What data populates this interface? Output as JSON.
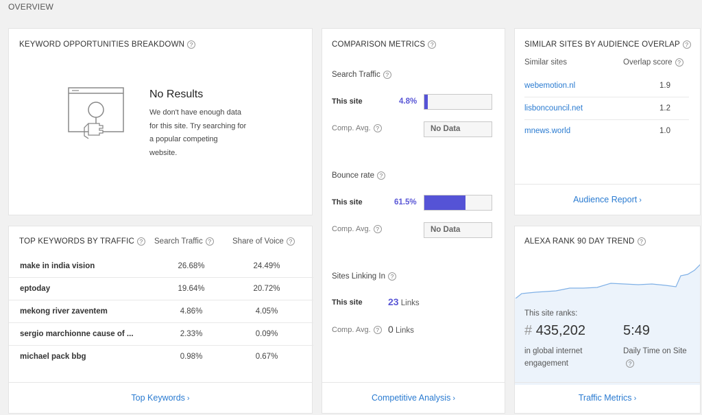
{
  "page": {
    "section_title": "OVERVIEW"
  },
  "keyword_opportunities": {
    "title": "KEYWORD OPPORTUNITIES BREAKDOWN",
    "no_results_title": "No Results",
    "no_results_lines": [
      "We don't have enough data",
      "for this site. Try searching for",
      "a popular competing",
      "website."
    ]
  },
  "top_keywords": {
    "title": "TOP KEYWORDS BY TRAFFIC",
    "col_search_traffic": "Search Traffic",
    "col_share_of_voice": "Share of Voice",
    "rows": [
      {
        "keyword": "make in india vision",
        "search_traffic": "26.68%",
        "share_of_voice": "24.49%"
      },
      {
        "keyword": "eptoday",
        "search_traffic": "19.64%",
        "share_of_voice": "20.72%"
      },
      {
        "keyword": "mekong river zaventem",
        "search_traffic": "4.86%",
        "share_of_voice": "4.05%"
      },
      {
        "keyword": "sergio marchionne cause of ...",
        "search_traffic": "2.33%",
        "share_of_voice": "0.09%"
      },
      {
        "keyword": "michael pack bbg",
        "search_traffic": "0.98%",
        "share_of_voice": "0.67%"
      }
    ],
    "footer_link": "Top Keywords"
  },
  "comparison": {
    "title": "COMPARISON METRICS",
    "search_traffic": {
      "label": "Search Traffic",
      "this_site_label": "This site",
      "this_site_value": "4.8%",
      "this_site_fraction": 0.048,
      "comp_label": "Comp. Avg.",
      "comp_value": "No Data"
    },
    "bounce_rate": {
      "label": "Bounce rate",
      "this_site_label": "This site",
      "this_site_value": "61.5%",
      "this_site_fraction": 0.615,
      "comp_label": "Comp. Avg.",
      "comp_value": "No Data"
    },
    "sites_linking": {
      "label": "Sites Linking In",
      "this_site_label": "This site",
      "this_site_count": "23",
      "comp_label": "Comp. Avg.",
      "comp_count": "0",
      "unit": "Links"
    },
    "footer_link": "Competitive Analysis"
  },
  "similar_sites": {
    "title": "SIMILAR SITES BY AUDIENCE OVERLAP",
    "col_sites": "Similar sites",
    "col_score": "Overlap score",
    "rows": [
      {
        "site": "webemotion.nl",
        "score": "1.9"
      },
      {
        "site": "lisboncouncil.net",
        "score": "1.2"
      },
      {
        "site": "mnews.world",
        "score": "1.0"
      }
    ],
    "footer_link": "Audience Report"
  },
  "alexa_rank": {
    "title": "ALEXA RANK 90 DAY TREND",
    "ranks_label": "This site ranks:",
    "hash": "#",
    "rank_value": "435,202",
    "rank_caption": "in global internet engagement",
    "daily_time": "5:49",
    "daily_time_caption": "Daily Time on Site",
    "footer_link": "Traffic Metrics",
    "colors": {
      "line": "#7fb0e6",
      "panel": "#ecf3fb"
    }
  },
  "colors": {
    "accent": "#5553d6",
    "link": "#2a7bd1"
  }
}
